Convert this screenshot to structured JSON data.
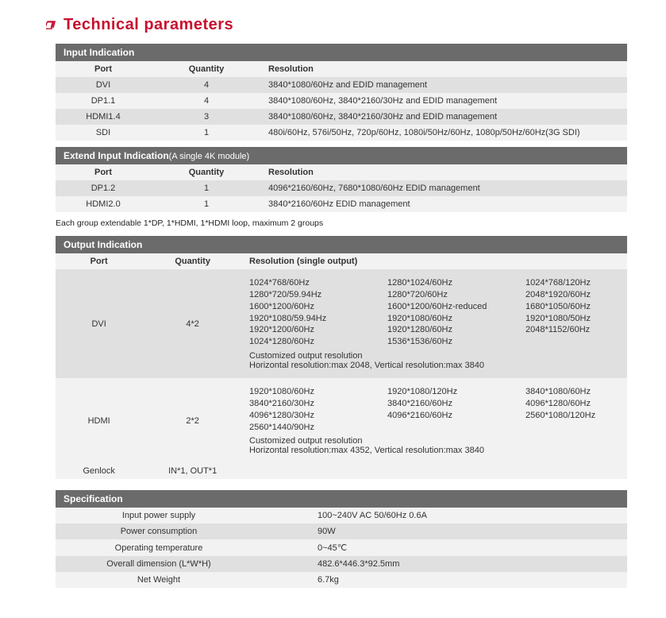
{
  "heading": "Technical parameters",
  "colors": {
    "accent": "#c8102e",
    "headerBg": "#6b6b6b",
    "rowOdd": "#e0e0e0",
    "rowEven": "#f2f2f2"
  },
  "inputIndication": {
    "title": "Input Indication",
    "headers": {
      "port": "Port",
      "qty": "Quantity",
      "res": "Resolution"
    },
    "rows": [
      {
        "port": "DVI",
        "qty": "4",
        "res": "3840*1080/60Hz and EDID management"
      },
      {
        "port": "DP1.1",
        "qty": "4",
        "res": "3840*1080/60Hz, 3840*2160/30Hz and EDID management"
      },
      {
        "port": "HDMI1.4",
        "qty": "3",
        "res": "3840*1080/60Hz, 3840*2160/30Hz and EDID management"
      },
      {
        "port": "SDI",
        "qty": "1",
        "res": "480i/60Hz, 576i/50Hz, 720p/60Hz, 1080i/50Hz/60Hz, 1080p/50Hz/60Hz(3G SDI)"
      }
    ]
  },
  "extendInput": {
    "title": "Extend Input Indication",
    "subtitle": "(A single 4K module)",
    "headers": {
      "port": "Port",
      "qty": "Quantity",
      "res": "Resolution"
    },
    "rows": [
      {
        "port": "DP1.2",
        "qty": "1",
        "res": "4096*2160/60Hz, 7680*1080/60Hz EDID management"
      },
      {
        "port": "HDMI2.0",
        "qty": "1",
        "res": "3840*2160/60Hz EDID management"
      }
    ],
    "note": "Each group extendable 1*DP, 1*HDMI, 1*HDMI loop, maximum 2 groups"
  },
  "outputIndication": {
    "title": "Output Indication",
    "headers": {
      "port": "Port",
      "qty": "Quantity",
      "res": "Resolution (single output)"
    },
    "rows": [
      {
        "port": "DVI",
        "qty": "4*2",
        "resolutions": {
          "col1": [
            "1024*768/60Hz",
            "1280*720/59.94Hz",
            "1600*1200/60Hz",
            "1920*1080/59.94Hz",
            "1920*1200/60Hz",
            "1024*1280/60Hz"
          ],
          "col2": [
            "1280*1024/60Hz",
            "1280*720/60Hz",
            "1600*1200/60Hz-reduced",
            "1920*1080/60Hz",
            "1920*1280/60Hz",
            "1536*1536/60Hz"
          ],
          "col3": [
            "1024*768/120Hz",
            "2048*1920/60Hz",
            "1680*1050/60Hz",
            "1920*1080/50Hz",
            "2048*1152/60Hz"
          ]
        },
        "custom1": "Customized output resolution",
        "custom2": "Horizontal resolution:max 2048, Vertical resolution:max 3840"
      },
      {
        "port": "HDMI",
        "qty": "2*2",
        "resolutions": {
          "col1": [
            "1920*1080/60Hz",
            "3840*2160/30Hz",
            "4096*1280/30Hz",
            "2560*1440/90Hz"
          ],
          "col2": [
            "1920*1080/120Hz",
            "3840*2160/60Hz",
            "4096*2160/60Hz"
          ],
          "col3": [
            "3840*1080/60Hz",
            "4096*1280/60Hz",
            "2560*1080/120Hz"
          ]
        },
        "custom1": "Customized output resolution",
        "custom2": "Horizontal resolution:max 4352, Vertical resolution:max 3840"
      },
      {
        "port": "Genlock",
        "qty": "IN*1, OUT*1",
        "plain": ""
      }
    ]
  },
  "specification": {
    "title": "Specification",
    "rows": [
      {
        "label": "Input power supply",
        "value": "100~240V AC 50/60Hz 0.6A"
      },
      {
        "label": "Power consumption",
        "value": "90W"
      },
      {
        "label": "Operating temperature",
        "value": "0~45℃"
      },
      {
        "label": "Overall dimension  (L*W*H)",
        "value": "482.6*446.3*92.5mm"
      },
      {
        "label": "Net Weight",
        "value": "6.7kg"
      }
    ]
  }
}
